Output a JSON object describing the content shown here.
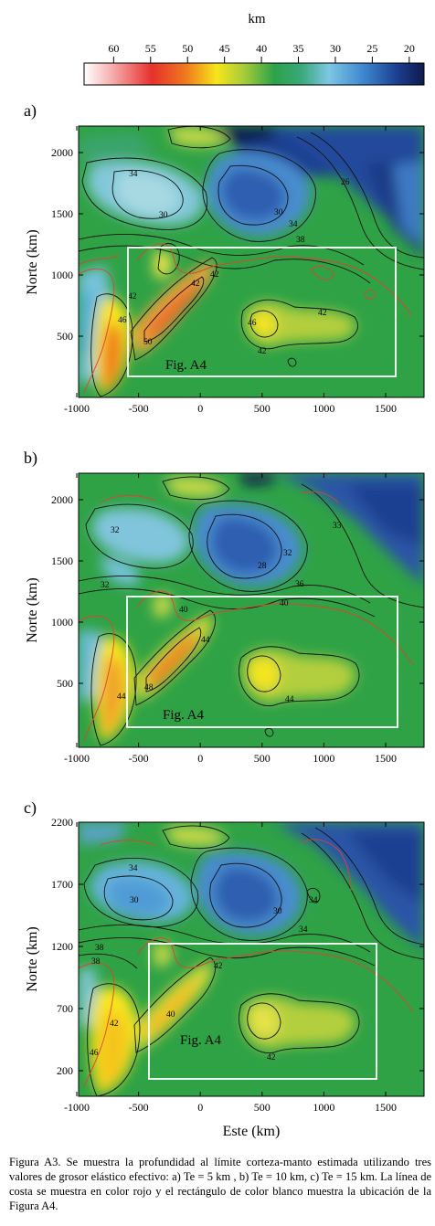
{
  "colorbar": {
    "unit": "km",
    "ticks": [
      "60",
      "55",
      "50",
      "45",
      "40",
      "35",
      "30",
      "25",
      "20"
    ],
    "tick_values": [
      60,
      55,
      50,
      45,
      40,
      35,
      30,
      25,
      20
    ],
    "range": [
      64,
      18
    ],
    "colors": [
      "#ffffff",
      "#f6b0b0",
      "#e6312c",
      "#f07a1e",
      "#f7e51a",
      "#a7cc38",
      "#2ca24a",
      "#3aa97a",
      "#7ec6e4",
      "#3f88cf",
      "#1c3f91",
      "#0d1a4d"
    ]
  },
  "panels": [
    {
      "label": "a)",
      "inset_label": "Fig. A4",
      "ylabel": "Norte (km)",
      "xticks": [
        "-1000",
        "-500",
        "0",
        "500",
        "1000",
        "1500"
      ],
      "yticks": [
        "2000",
        "1500",
        "1000",
        "500"
      ],
      "contour_labels": [
        "34",
        "30",
        "30",
        "34",
        "26",
        "38",
        "42",
        "42",
        "46",
        "42",
        "50",
        "42",
        "46",
        "42"
      ]
    },
    {
      "label": "b)",
      "inset_label": "Fig. A4",
      "ylabel": "Norte (km)",
      "xticks": [
        "-1000",
        "-500",
        "0",
        "500",
        "1000",
        "1500"
      ],
      "yticks": [
        "2000",
        "1500",
        "1000",
        "500"
      ],
      "contour_labels": [
        "32",
        "28",
        "32",
        "32",
        "36",
        "40",
        "40",
        "44",
        "48",
        "44",
        "44",
        "33"
      ]
    },
    {
      "label": "c)",
      "inset_label": "Fig. A4",
      "ylabel": "Norte (km)",
      "xlabel": "Este (km)",
      "xticks": [
        "-1000",
        "-500",
        "0",
        "500",
        "1000",
        "1500"
      ],
      "yticks": [
        "2200",
        "1700",
        "1200",
        "700",
        "200"
      ],
      "contour_labels": [
        "34",
        "30",
        "30",
        "34",
        "34",
        "38",
        "42",
        "42",
        "40",
        "46",
        "42",
        "38"
      ]
    }
  ],
  "caption": "Figura A3. Se muestra la profundidad al límite corteza-manto estimada utilizando tres valores de grosor elástico efectivo: a) Te = 5 km , b) Te = 10 km, c) Te = 15 km. La línea de costa se muestra en color rojo y el rectángulo de color blanco muestra la ubicación de la Figura A4."
}
